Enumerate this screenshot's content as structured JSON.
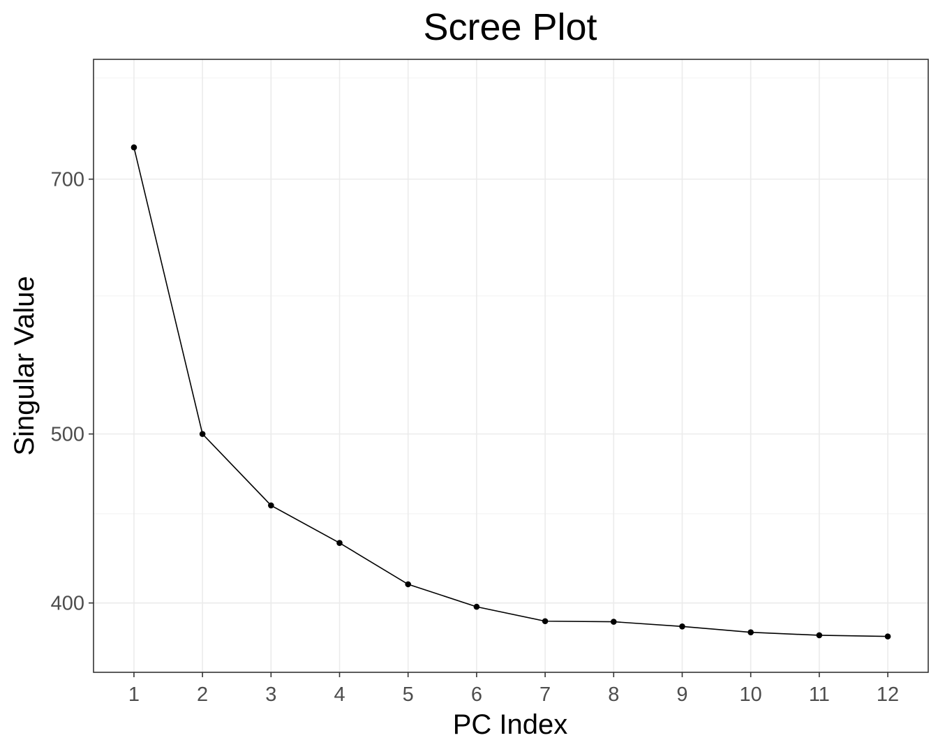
{
  "chart_data": {
    "type": "line",
    "title": "Scree Plot",
    "xlabel": "PC Index",
    "ylabel": "Singular Value",
    "x": [
      1,
      2,
      3,
      4,
      5,
      6,
      7,
      8,
      9,
      10,
      11,
      12
    ],
    "series": [
      {
        "values": [
          730,
          500,
          455,
          433,
          410,
          398,
          390.5,
          390.2,
          387.8,
          384.8,
          383.3,
          382.7
        ]
      }
    ],
    "xticks": [
      "1",
      "2",
      "3",
      "4",
      "5",
      "6",
      "7",
      "8",
      "9",
      "10",
      "11",
      "12"
    ],
    "yticks": [
      400,
      500,
      700
    ],
    "ytick_labels": [
      "400",
      "500",
      "700"
    ],
    "yminor": [
      450,
      600,
      800
    ],
    "xlim": [
      0.41,
      12.59
    ],
    "ylim": [
      365,
      820
    ],
    "y_scale": "log",
    "grid": true,
    "colors": {
      "line": "#000000",
      "point": "#000000",
      "grid": "#ebebeb",
      "tick_text": "#4d4d4d"
    }
  }
}
